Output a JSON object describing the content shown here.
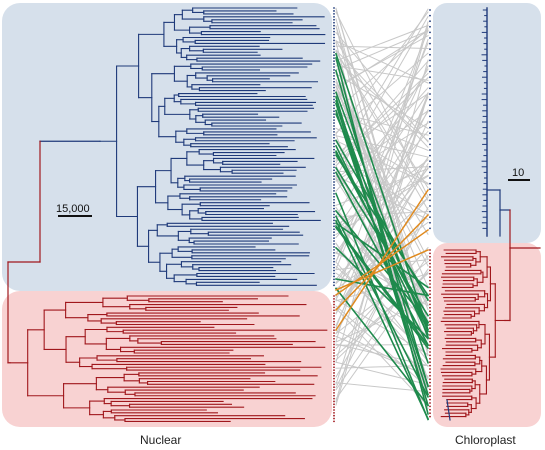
{
  "panels": {
    "left": {
      "label": "Nuclear",
      "scale_bar_label": "15,000"
    },
    "right": {
      "label": "Chloroplast",
      "scale_bar_label": "10"
    }
  },
  "colors": {
    "clade_blue_fill": "#d6e0eb",
    "clade_red_fill": "#f8d2d2",
    "branch_blue": "#1f3a7a",
    "branch_red": "#a0171c",
    "branch_dark": "#3a3a3a",
    "link_grey": "#c8c8c8",
    "link_green": "#1e8a4c",
    "link_orange": "#e08a1e"
  },
  "icons": [
    "tree-branch",
    "connector-line"
  ]
}
